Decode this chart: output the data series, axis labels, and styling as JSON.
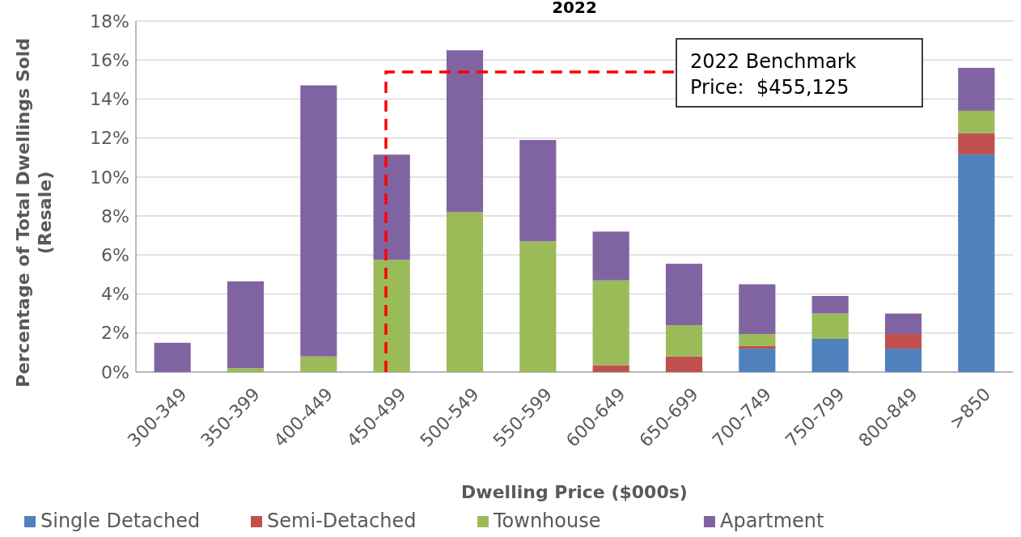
{
  "chart_data": {
    "type": "bar",
    "title": "2022",
    "xlabel": "Dwelling Price ($000s)",
    "ylabel": "Percentage of Total Dwellings Sold\n(Resale)",
    "categories": [
      "300-349",
      "350-399",
      "400-449",
      "450-499",
      "500-549",
      "550-599",
      "600-649",
      "650-699",
      "700-749",
      "750-799",
      "800-849",
      ">850"
    ],
    "stacked": true,
    "series": [
      {
        "name": "Single Detached",
        "color": "#4f81bd",
        "values": [
          0,
          0,
          0,
          0,
          0,
          0,
          0,
          0,
          1.2,
          1.7,
          1.2,
          11.15
        ]
      },
      {
        "name": "Semi-Detached",
        "color": "#c0504d",
        "values": [
          0,
          0,
          0,
          0,
          0,
          0,
          0.35,
          0.8,
          0.13,
          0,
          0.75,
          1.1
        ]
      },
      {
        "name": "Townhouse",
        "color": "#9bbb59",
        "values": [
          0,
          0.2,
          0.8,
          5.75,
          8.2,
          6.7,
          4.35,
          1.6,
          0.62,
          1.3,
          0,
          1.15
        ]
      },
      {
        "name": "Apartment",
        "color": "#8064a2",
        "values": [
          1.5,
          4.45,
          13.9,
          5.4,
          8.3,
          5.2,
          2.5,
          3.15,
          2.55,
          0.9,
          1.05,
          2.2
        ]
      }
    ],
    "ylim": [
      0,
      18
    ],
    "yticks": [
      {
        "value": 0,
        "label": "0%"
      },
      {
        "value": 2,
        "label": "2%"
      },
      {
        "value": 4,
        "label": "4%"
      },
      {
        "value": 6,
        "label": "6%"
      },
      {
        "value": 8,
        "label": "8%"
      },
      {
        "value": 10,
        "label": "10%"
      },
      {
        "value": 12,
        "label": "12%"
      },
      {
        "value": 14,
        "label": "14%"
      },
      {
        "value": 16,
        "label": "16%"
      },
      {
        "value": 18,
        "label": "18%"
      }
    ],
    "grid": "y",
    "legend": "bottom",
    "annotations": [
      "2022 Benchmark\nPrice:  $455,125"
    ]
  }
}
